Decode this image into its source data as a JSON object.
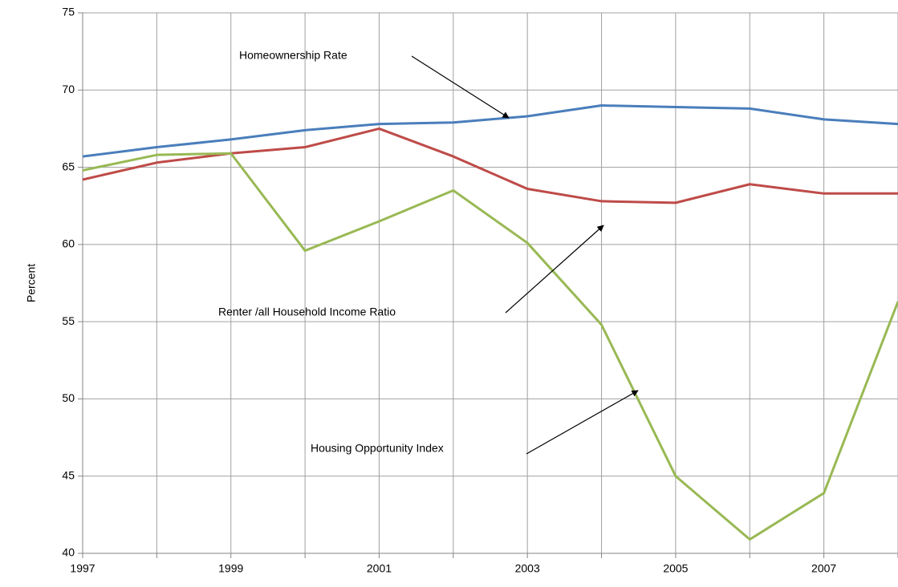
{
  "chart_data": {
    "type": "line",
    "y_label": "Percent",
    "x": [
      1997,
      1998,
      1999,
      2000,
      2001,
      2002,
      2003,
      2004,
      2005,
      2006,
      2007,
      2008
    ],
    "series": [
      {
        "name": "Homeownership Rate",
        "color": "#4a7ebb",
        "values": [
          65.7,
          66.3,
          66.8,
          67.4,
          67.8,
          67.9,
          68.3,
          69.0,
          68.9,
          68.8,
          68.1,
          67.8
        ]
      },
      {
        "name": "Renter /all Household Income  Ratio",
        "color": "#be4b48",
        "values": [
          64.2,
          65.3,
          65.9,
          66.3,
          67.5,
          65.7,
          63.6,
          62.8,
          62.7,
          63.9,
          63.3,
          63.3
        ]
      },
      {
        "name": "Housing Opportunity Index",
        "color": "#98b954",
        "values": [
          64.8,
          65.8,
          65.9,
          59.6,
          61.5,
          63.5,
          60.1,
          54.8,
          45.0,
          40.9,
          43.9,
          56.3
        ]
      }
    ],
    "xlim": [
      1997,
      2008
    ],
    "xticks": [
      1997,
      1999,
      2001,
      2003,
      2005,
      2007
    ],
    "x_minor_ticks": [
      1998,
      2000,
      2002,
      2004,
      2006,
      2008
    ],
    "ylim": [
      40,
      75
    ],
    "yticks": [
      40,
      45,
      50,
      55,
      60,
      65,
      70,
      75
    ],
    "grid": true
  }
}
